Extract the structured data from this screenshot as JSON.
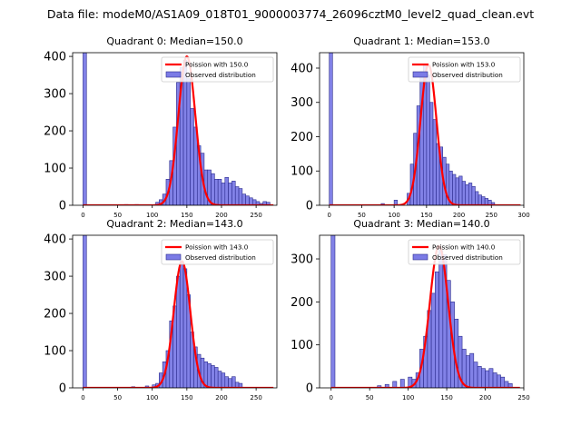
{
  "suptitle": "Data file: modeM0/AS1A09_018T01_9000003774_26096cztM0_level2_quad_clean.evt",
  "chart_data": [
    {
      "type": "bar",
      "title": "Quadrant 0: Median=150.0",
      "xlim": [
        -15,
        280
      ],
      "ylim": [
        0,
        410
      ],
      "xticks": [
        0,
        50,
        100,
        150,
        200,
        250
      ],
      "yticks": [
        0,
        100,
        200,
        300,
        400
      ],
      "bin_width": 5,
      "bins_left": [
        0,
        60,
        75,
        105,
        110,
        115,
        120,
        125,
        130,
        135,
        140,
        145,
        150,
        155,
        160,
        165,
        170,
        175,
        180,
        185,
        190,
        195,
        200,
        205,
        210,
        215,
        220,
        225,
        230,
        235,
        240,
        245,
        250,
        255,
        260,
        265
      ],
      "counts": [
        410,
        2,
        2,
        8,
        15,
        30,
        70,
        120,
        210,
        330,
        370,
        390,
        340,
        260,
        210,
        160,
        140,
        95,
        95,
        85,
        70,
        70,
        60,
        75,
        60,
        65,
        50,
        45,
        30,
        25,
        20,
        15,
        10,
        5,
        10,
        8
      ],
      "poisson_mean": 150.0,
      "poisson_peak": 400,
      "legend": [
        "Poission with 150.0",
        "Observed distribution"
      ]
    },
    {
      "type": "bar",
      "title": "Quadrant 1: Median=153.0",
      "xlim": [
        -15,
        300
      ],
      "ylim": [
        0,
        445
      ],
      "xticks": [
        0,
        50,
        100,
        150,
        200,
        250,
        300
      ],
      "yticks": [
        0,
        100,
        200,
        300,
        400
      ],
      "bin_width": 5,
      "bins_left": [
        0,
        80,
        100,
        120,
        125,
        130,
        135,
        140,
        145,
        150,
        155,
        160,
        165,
        170,
        175,
        180,
        185,
        190,
        195,
        200,
        205,
        210,
        215,
        220,
        225,
        230,
        235,
        240,
        245,
        250
      ],
      "counts": [
        445,
        5,
        15,
        35,
        120,
        210,
        290,
        390,
        410,
        380,
        300,
        250,
        180,
        170,
        140,
        120,
        100,
        90,
        80,
        85,
        70,
        60,
        65,
        55,
        40,
        30,
        25,
        20,
        15,
        8
      ],
      "poisson_mean": 153.0,
      "poisson_peak": 410,
      "legend": [
        "Poission with 153.0",
        "Observed distribution"
      ]
    },
    {
      "type": "bar",
      "title": "Quadrant 2: Median=143.0",
      "xlim": [
        -15,
        280
      ],
      "ylim": [
        0,
        410
      ],
      "xticks": [
        0,
        50,
        100,
        150,
        200,
        250
      ],
      "yticks": [
        0,
        100,
        200,
        300,
        400
      ],
      "bin_width": 5,
      "bins_left": [
        0,
        70,
        90,
        100,
        105,
        110,
        115,
        120,
        125,
        130,
        135,
        140,
        145,
        150,
        155,
        160,
        165,
        170,
        175,
        180,
        185,
        190,
        195,
        200,
        205,
        210,
        215,
        220,
        225
      ],
      "counts": [
        410,
        3,
        5,
        8,
        12,
        40,
        70,
        100,
        180,
        220,
        300,
        340,
        320,
        250,
        150,
        110,
        90,
        80,
        70,
        65,
        60,
        55,
        45,
        40,
        30,
        25,
        30,
        15,
        12
      ],
      "poisson_mean": 143.0,
      "poisson_peak": 340,
      "legend": [
        "Poission with 143.0",
        "Observed distribution"
      ]
    },
    {
      "type": "bar",
      "title": "Quadrant 3: Median=140.0",
      "xlim": [
        -15,
        250
      ],
      "ylim": [
        0,
        355
      ],
      "xticks": [
        0,
        50,
        100,
        150,
        200,
        250
      ],
      "yticks": [
        0,
        100,
        200,
        300
      ],
      "bin_width": 5,
      "bins_left": [
        0,
        60,
        70,
        80,
        90,
        100,
        105,
        110,
        115,
        120,
        125,
        130,
        135,
        140,
        145,
        150,
        155,
        160,
        165,
        170,
        175,
        180,
        185,
        190,
        195,
        200,
        205,
        210,
        215,
        220,
        225,
        230
      ],
      "counts": [
        355,
        5,
        8,
        15,
        20,
        25,
        20,
        35,
        90,
        120,
        180,
        220,
        270,
        320,
        310,
        250,
        200,
        160,
        120,
        90,
        75,
        80,
        60,
        50,
        45,
        40,
        45,
        35,
        30,
        25,
        15,
        10
      ],
      "poisson_mean": 140.0,
      "poisson_peak": 330,
      "legend": [
        "Poission with 140.0",
        "Observed distribution"
      ]
    }
  ],
  "colors": {
    "bar_fill": "#7b7be6",
    "bar_edge": "#2a2a8c",
    "curve": "#ff0000"
  }
}
